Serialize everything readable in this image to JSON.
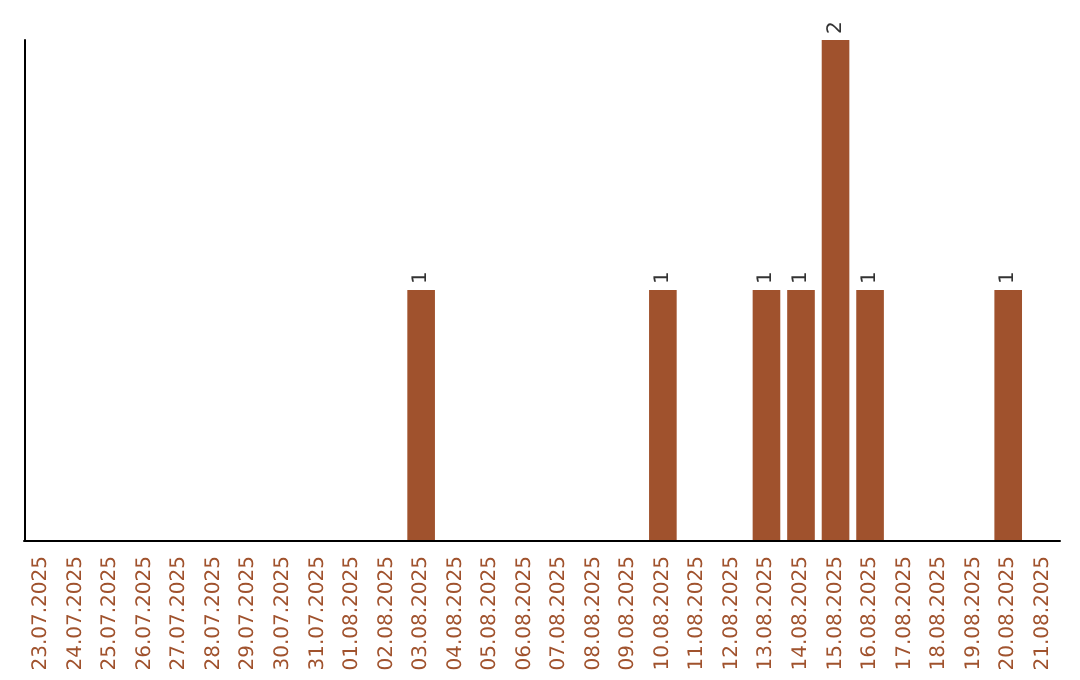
{
  "chart_data": {
    "type": "bar",
    "categories": [
      "23.07.2025",
      "24.07.2025",
      "25.07.2025",
      "26.07.2025",
      "27.07.2025",
      "28.07.2025",
      "29.07.2025",
      "30.07.2025",
      "31.07.2025",
      "01.08.2025",
      "02.08.2025",
      "03.08.2025",
      "04.08.2025",
      "05.08.2025",
      "06.08.2025",
      "07.08.2025",
      "08.08.2025",
      "09.08.2025",
      "10.08.2025",
      "11.08.2025",
      "12.08.2025",
      "13.08.2025",
      "14.08.2025",
      "15.08.2025",
      "16.08.2025",
      "17.08.2025",
      "18.08.2025",
      "19.08.2025",
      "20.08.2025",
      "21.08.2025"
    ],
    "values": [
      0,
      0,
      0,
      0,
      0,
      0,
      0,
      0,
      0,
      0,
      0,
      1,
      0,
      0,
      0,
      0,
      0,
      0,
      1,
      0,
      0,
      1,
      1,
      2,
      1,
      0,
      0,
      0,
      1,
      0
    ],
    "value_labels": [
      null,
      null,
      null,
      null,
      null,
      null,
      null,
      null,
      null,
      null,
      null,
      "1",
      null,
      null,
      null,
      null,
      null,
      null,
      "1",
      null,
      null,
      "1",
      "1",
      "2",
      "1",
      null,
      null,
      null,
      "1",
      null
    ],
    "color": "#a0522d",
    "tick_labels": "x"
  }
}
